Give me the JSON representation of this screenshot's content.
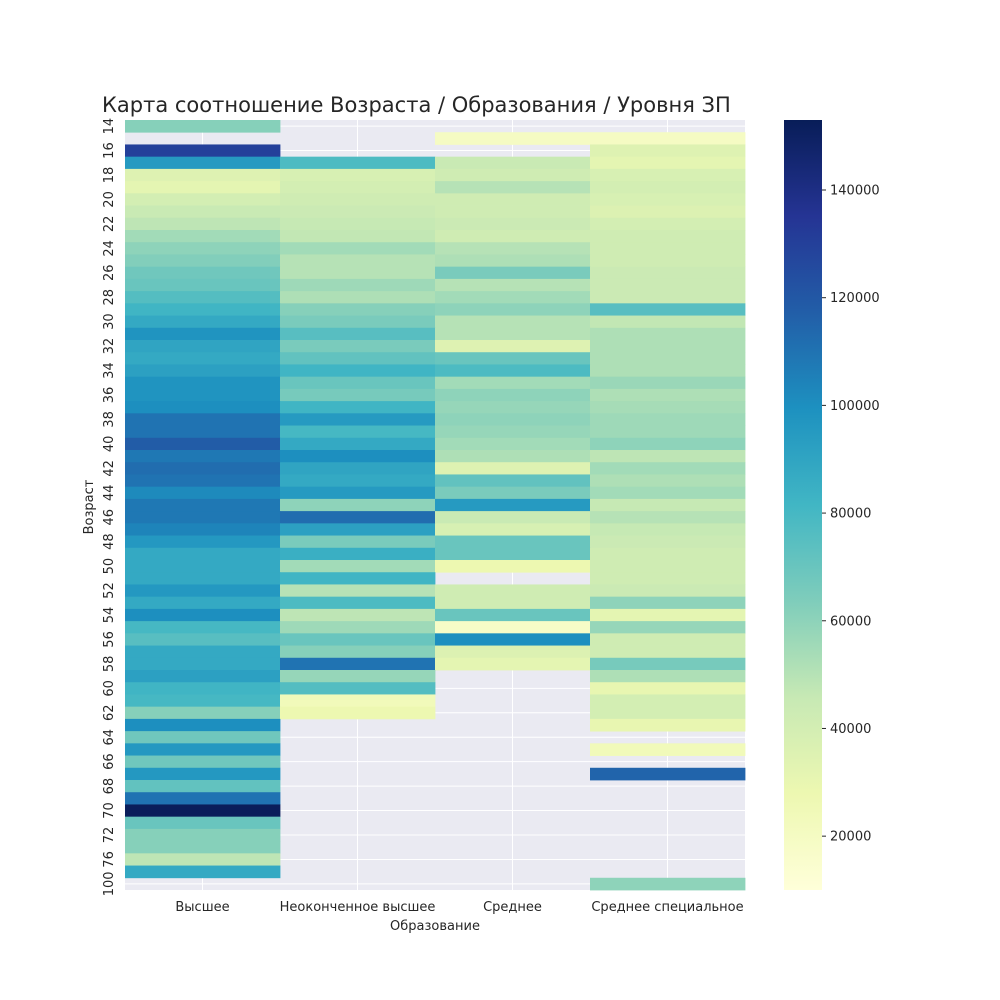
{
  "chart_data": {
    "type": "heatmap",
    "title": "Карта соотношение Возраста / Образования / Уровня ЗП",
    "xlabel": "Образование",
    "ylabel": "Возраст",
    "categories": [
      "Высшее",
      "Неоконченное высшее",
      "Среднее",
      "Среднее специальное"
    ],
    "y_ticks": [
      "14",
      "16",
      "18",
      "20",
      "22",
      "24",
      "26",
      "28",
      "30",
      "32",
      "34",
      "36",
      "38",
      "40",
      "42",
      "44",
      "46",
      "48",
      "50",
      "52",
      "54",
      "56",
      "58",
      "60",
      "62",
      "64",
      "66",
      "68",
      "70",
      "72",
      "76",
      "100"
    ],
    "rows": [
      {
        "age": "14",
        "values": [
          62000,
          null,
          null,
          null
        ]
      },
      {
        "age": "15",
        "values": [
          null,
          null,
          20000,
          20000
        ]
      },
      {
        "age": "16",
        "values": [
          130000,
          null,
          null,
          35000
        ]
      },
      {
        "age": "17",
        "values": [
          95000,
          78000,
          45000,
          32000
        ]
      },
      {
        "age": "18",
        "values": [
          35000,
          38000,
          42000,
          38000
        ]
      },
      {
        "age": "19",
        "values": [
          32000,
          40000,
          50000,
          40000
        ]
      },
      {
        "age": "20",
        "values": [
          40000,
          42000,
          42000,
          38000
        ]
      },
      {
        "age": "21",
        "values": [
          45000,
          44000,
          42000,
          36000
        ]
      },
      {
        "age": "22",
        "values": [
          48000,
          46000,
          44000,
          40000
        ]
      },
      {
        "age": "23",
        "values": [
          55000,
          47000,
          42000,
          42000
        ]
      },
      {
        "age": "24",
        "values": [
          60000,
          55000,
          50000,
          42000
        ]
      },
      {
        "age": "25",
        "values": [
          63000,
          50000,
          52000,
          42000
        ]
      },
      {
        "age": "26",
        "values": [
          68000,
          50000,
          65000,
          44000
        ]
      },
      {
        "age": "27",
        "values": [
          70000,
          56000,
          50000,
          44000
        ]
      },
      {
        "age": "28",
        "values": [
          76000,
          52000,
          55000,
          44000
        ]
      },
      {
        "age": "29",
        "values": [
          82000,
          62000,
          60000,
          75000
        ]
      },
      {
        "age": "30",
        "values": [
          88000,
          65000,
          50000,
          47000
        ]
      },
      {
        "age": "31",
        "values": [
          98000,
          75000,
          50000,
          52000
        ]
      },
      {
        "age": "32",
        "values": [
          90000,
          65000,
          35000,
          52000
        ]
      },
      {
        "age": "33",
        "values": [
          88000,
          72000,
          70000,
          52000
        ]
      },
      {
        "age": "34",
        "values": [
          92000,
          82000,
          78000,
          52000
        ]
      },
      {
        "age": "35",
        "values": [
          98000,
          70000,
          55000,
          57000
        ]
      },
      {
        "age": "36",
        "values": [
          98000,
          66000,
          60000,
          52000
        ]
      },
      {
        "age": "37",
        "values": [
          100000,
          82000,
          58000,
          54000
        ]
      },
      {
        "age": "38",
        "values": [
          110000,
          95000,
          60000,
          56000
        ]
      },
      {
        "age": "39",
        "values": [
          110000,
          80000,
          58000,
          56000
        ]
      },
      {
        "age": "40",
        "values": [
          118000,
          88000,
          55000,
          60000
        ]
      },
      {
        "age": "41",
        "values": [
          108000,
          100000,
          52000,
          48000
        ]
      },
      {
        "age": "42",
        "values": [
          112000,
          90000,
          35000,
          55000
        ]
      },
      {
        "age": "43",
        "values": [
          110000,
          88000,
          72000,
          52000
        ]
      },
      {
        "age": "44",
        "values": [
          102000,
          95000,
          65000,
          55000
        ]
      },
      {
        "age": "45",
        "values": [
          108000,
          60000,
          95000,
          46000
        ]
      },
      {
        "age": "46",
        "values": [
          108000,
          112000,
          45000,
          50000
        ]
      },
      {
        "age": "47",
        "values": [
          104000,
          92000,
          38000,
          46000
        ]
      },
      {
        "age": "48",
        "values": [
          96000,
          65000,
          70000,
          44000
        ]
      },
      {
        "age": "49",
        "values": [
          88000,
          85000,
          70000,
          42000
        ]
      },
      {
        "age": "50",
        "values": [
          88000,
          55000,
          28000,
          42000
        ]
      },
      {
        "age": "51",
        "values": [
          88000,
          82000,
          null,
          42000
        ]
      },
      {
        "age": "52",
        "values": [
          96000,
          50000,
          42000,
          44000
        ]
      },
      {
        "age": "53",
        "values": [
          88000,
          78000,
          42000,
          60000
        ]
      },
      {
        "age": "54",
        "values": [
          100000,
          48000,
          70000,
          32000
        ]
      },
      {
        "age": "55",
        "values": [
          80000,
          56000,
          18000,
          58000
        ]
      },
      {
        "age": "56",
        "values": [
          75000,
          70000,
          100000,
          42000
        ]
      },
      {
        "age": "57",
        "values": [
          88000,
          62000,
          36000,
          42000
        ]
      },
      {
        "age": "58",
        "values": [
          88000,
          110000,
          32000,
          66000
        ]
      },
      {
        "age": "59",
        "values": [
          92000,
          58000,
          null,
          52000
        ]
      },
      {
        "age": "60",
        "values": [
          82000,
          76000,
          null,
          30000
        ]
      },
      {
        "age": "61",
        "values": [
          80000,
          24000,
          null,
          40000
        ]
      },
      {
        "age": "62",
        "values": [
          62000,
          28000,
          null,
          40000
        ]
      },
      {
        "age": "63",
        "values": [
          100000,
          null,
          null,
          30000
        ]
      },
      {
        "age": "64",
        "values": [
          68000,
          null,
          null,
          null
        ]
      },
      {
        "age": "65",
        "values": [
          96000,
          null,
          null,
          24000
        ]
      },
      {
        "age": "66",
        "values": [
          68000,
          null,
          null,
          null
        ]
      },
      {
        "age": "67",
        "values": [
          96000,
          null,
          null,
          115000
        ]
      },
      {
        "age": "68",
        "values": [
          72000,
          null,
          null,
          null
        ]
      },
      {
        "age": "69",
        "values": [
          110000,
          null,
          null,
          null
        ]
      },
      {
        "age": "70",
        "values": [
          152000,
          null,
          null,
          null
        ]
      },
      {
        "age": "71",
        "values": [
          70000,
          null,
          null,
          null
        ]
      },
      {
        "age": "72",
        "values": [
          62000,
          null,
          null,
          null
        ]
      },
      {
        "age": "73",
        "values": [
          62000,
          null,
          null,
          null
        ]
      },
      {
        "age": "76",
        "values": [
          48000,
          null,
          null,
          null
        ]
      },
      {
        "age": "77",
        "values": [
          88000,
          null,
          null,
          null
        ]
      },
      {
        "age": "100",
        "values": [
          null,
          null,
          null,
          60000
        ]
      }
    ],
    "colorbar": {
      "min": 10000,
      "max": 153000,
      "ticks": [
        "20000",
        "40000",
        "60000",
        "80000",
        "100000",
        "120000",
        "140000"
      ],
      "colormap": "YlGnBu"
    },
    "grid": true,
    "background_missing": "#eaeaf2"
  }
}
